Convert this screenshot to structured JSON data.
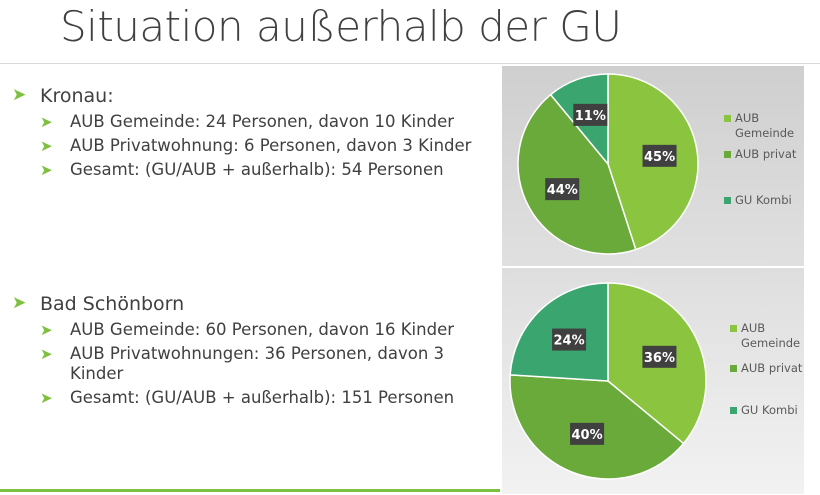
{
  "title": "Situation außerhalb der GU",
  "sections": [
    {
      "heading": "Kronau:",
      "items": [
        {
          "text": "AUB Gemeinde: 24 Personen, davon 10 Kinder"
        },
        {
          "text": "AUB Privatwohnung: 6 Personen, davon 3 Kinder"
        },
        {
          "text": "Gesamt: (GU/AUB + außerhalb): 54 Personen"
        }
      ]
    },
    {
      "heading": "Bad Schönborn",
      "items": [
        {
          "text": "AUB Gemeinde: 60 Personen, davon 16 Kinder"
        },
        {
          "text": "AUB Privatwohnungen: 36 Personen, davon 3 Kinder"
        },
        {
          "text": "Gesamt: (GU/AUB + außerhalb): 151 Personen"
        }
      ]
    }
  ],
  "colors": {
    "accent": "#7dc13f",
    "slice_gemeinde": "#8bc540",
    "slice_privat": "#6aaa3a",
    "slice_gukombi": "#3aa56f",
    "label_bg": "#404040"
  },
  "chart_data": [
    {
      "type": "pie",
      "title": "",
      "categories": [
        "AUB Gemeinde",
        "AUB privat",
        "GU Kombi"
      ],
      "values": [
        45,
        44,
        11
      ],
      "data_labels": [
        "45%",
        "44%",
        "11%"
      ],
      "legend_entries": [
        "AUB Gemeinde",
        "AUB privat",
        "GU Kombi"
      ],
      "legend_position": "right"
    },
    {
      "type": "pie",
      "title": "",
      "categories": [
        "AUB Gemeinde",
        "AUB privat",
        "GU Kombi"
      ],
      "values": [
        36,
        40,
        24
      ],
      "data_labels": [
        "36%",
        "40%",
        "24%"
      ],
      "legend_entries": [
        "AUB Gemeinde",
        "AUB privat",
        "GU Kombi"
      ],
      "legend_position": "right"
    }
  ]
}
